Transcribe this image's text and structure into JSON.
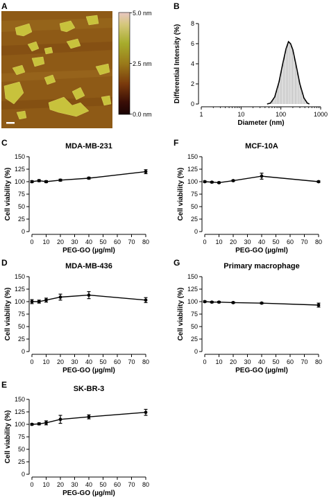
{
  "panels": {
    "A": {
      "label": "A",
      "colorbar": {
        "tick_labels": [
          "5.0 nm",
          "2.5 nm",
          "0.0 nm"
        ]
      }
    }
  },
  "chart_data": [
    {
      "panel": "B",
      "type": "area",
      "title": "",
      "xlabel": "Diameter (nm)",
      "ylabel": "Differential Intensity (%)",
      "xscale": "log",
      "xlim": [
        1,
        1000
      ],
      "ylim": [
        0,
        8
      ],
      "xticks": [
        "1",
        "10",
        "100",
        "1000"
      ],
      "yticks": [
        "0",
        "2",
        "4",
        "6",
        "8"
      ],
      "x": [
        45,
        55,
        70,
        90,
        110,
        135,
        155,
        175,
        200,
        240,
        300,
        380,
        460,
        520
      ],
      "y": [
        0,
        0.1,
        0.7,
        2.2,
        3.9,
        5.5,
        6.2,
        6.0,
        5.4,
        3.9,
        2.0,
        0.6,
        0.1,
        0
      ]
    },
    {
      "panel": "C",
      "type": "line",
      "title": "MDA-MB-231",
      "xlabel": "PEG-GO (µg/ml)",
      "ylabel": "Cell viability (%)",
      "xlim": [
        0,
        80
      ],
      "ylim": [
        0,
        150
      ],
      "xticks": [
        "0",
        "10",
        "20",
        "30",
        "40",
        "50",
        "60",
        "70",
        "80"
      ],
      "yticks": [
        "0",
        "25",
        "50",
        "75",
        "100",
        "125",
        "150"
      ],
      "x": [
        0,
        5,
        10,
        20,
        40,
        80
      ],
      "y": [
        100,
        102,
        100,
        103,
        107,
        120
      ],
      "err": [
        2,
        2,
        2,
        2,
        2,
        4
      ]
    },
    {
      "panel": "F",
      "type": "line",
      "title": "MCF-10A",
      "xlabel": "PEG-GO (µg/ml)",
      "ylabel": "Cell viability (%)",
      "xlim": [
        0,
        80
      ],
      "ylim": [
        0,
        150
      ],
      "xticks": [
        "0",
        "10",
        "20",
        "30",
        "40",
        "50",
        "60",
        "70",
        "80"
      ],
      "yticks": [
        "0",
        "25",
        "50",
        "75",
        "100",
        "125",
        "150"
      ],
      "x": [
        0,
        5,
        10,
        20,
        40,
        80
      ],
      "y": [
        100,
        99,
        98,
        102,
        111,
        100
      ],
      "err": [
        1.5,
        1.5,
        1.5,
        1.5,
        6,
        1.5
      ]
    },
    {
      "panel": "D",
      "type": "line",
      "title": "MDA-MB-436",
      "xlabel": "PEG-GO (µg/ml)",
      "ylabel": "Cell viability (%)",
      "xlim": [
        0,
        80
      ],
      "ylim": [
        0,
        150
      ],
      "xticks": [
        "0",
        "10",
        "20",
        "30",
        "40",
        "50",
        "60",
        "70",
        "80"
      ],
      "yticks": [
        "0",
        "25",
        "50",
        "75",
        "100",
        "125",
        "150"
      ],
      "x": [
        0,
        5,
        10,
        20,
        40,
        80
      ],
      "y": [
        100,
        100,
        103,
        109,
        113,
        103
      ],
      "err": [
        4,
        3,
        4,
        6,
        7,
        5
      ]
    },
    {
      "panel": "G",
      "type": "line",
      "title": "Primary macrophage",
      "xlabel": "PEG-GO (µg/ml)",
      "ylabel": "Cell viability (%)",
      "xlim": [
        0,
        80
      ],
      "ylim": [
        0,
        150
      ],
      "xticks": [
        "0",
        "10",
        "20",
        "30",
        "40",
        "50",
        "60",
        "70",
        "80"
      ],
      "yticks": [
        "0",
        "25",
        "50",
        "75",
        "100",
        "125",
        "150"
      ],
      "x": [
        0,
        5,
        10,
        20,
        40,
        80
      ],
      "y": [
        100,
        99,
        99,
        98,
        97,
        93
      ],
      "err": [
        1.5,
        1.5,
        1.5,
        1.5,
        1.5,
        4
      ]
    },
    {
      "panel": "E",
      "type": "line",
      "title": "SK-BR-3",
      "xlabel": "PEG-GO (µg/ml)",
      "ylabel": "Cell viability (%)",
      "xlim": [
        0,
        80
      ],
      "ylim": [
        0,
        150
      ],
      "xticks": [
        "0",
        "10",
        "20",
        "30",
        "40",
        "50",
        "60",
        "70",
        "80"
      ],
      "yticks": [
        "0",
        "25",
        "50",
        "75",
        "100",
        "125",
        "150"
      ],
      "x": [
        0,
        5,
        10,
        20,
        40,
        80
      ],
      "y": [
        100,
        101,
        103,
        110,
        115,
        124
      ],
      "err": [
        1.5,
        2,
        4,
        8,
        4,
        6
      ]
    }
  ]
}
